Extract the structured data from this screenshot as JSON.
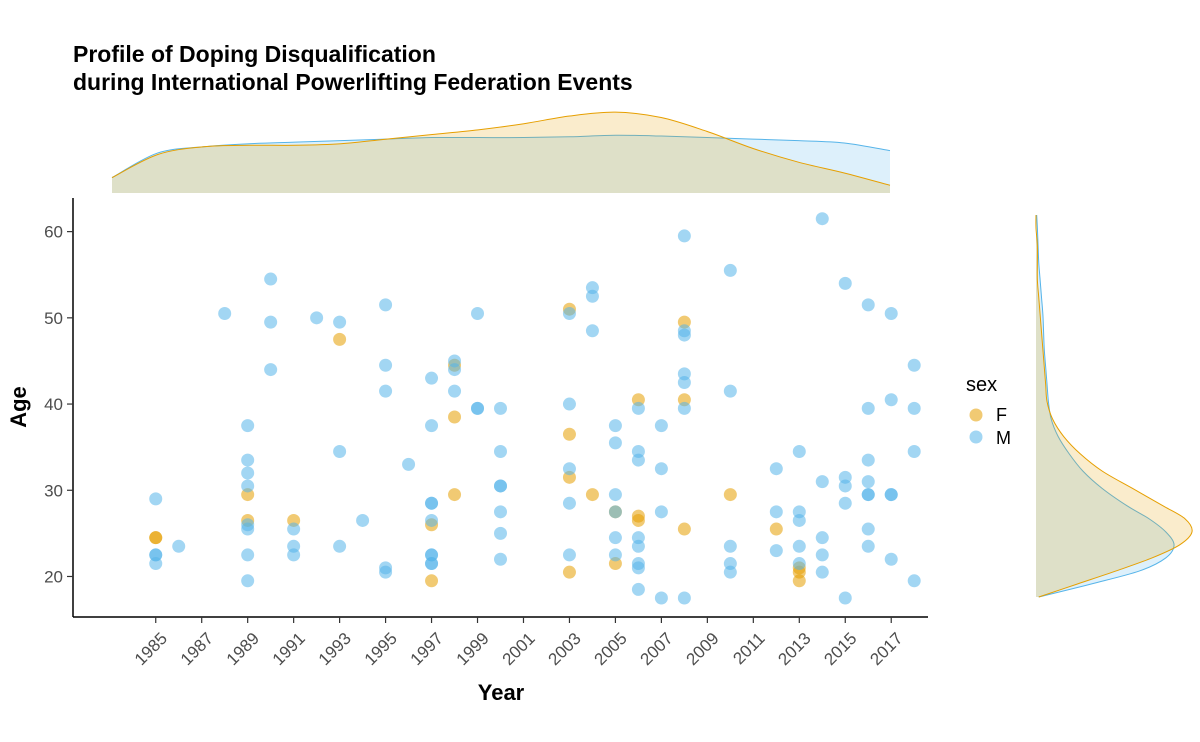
{
  "chart_data": {
    "type": "scatter",
    "title_lines": [
      "Profile of Doping Disqualification",
      "during International Powerlifting Federation Events"
    ],
    "xlabel": "Year",
    "ylabel": "Age",
    "xlim": [
      1981.4,
      2018.6
    ],
    "ylim": [
      15.3,
      63.9
    ],
    "x_ticks": [
      "1985",
      "1987",
      "1989",
      "1991",
      "1993",
      "1995",
      "1997",
      "1999",
      "2001",
      "2003",
      "2005",
      "2007",
      "2009",
      "2011",
      "2013",
      "2015",
      "2017"
    ],
    "y_ticks": [
      "20",
      "30",
      "40",
      "50",
      "60"
    ],
    "legend": {
      "title": "sex",
      "entries": [
        "F",
        "M"
      ]
    },
    "colors": {
      "F": "#E69F00",
      "M": "#56B4E9"
    },
    "series": [
      {
        "name": "F",
        "points": [
          [
            1985,
            24.5
          ],
          [
            1985,
            24.5
          ],
          [
            1989,
            29.5
          ],
          [
            1989,
            26.5
          ],
          [
            1991,
            26.5
          ],
          [
            1993,
            47.5
          ],
          [
            1997,
            26
          ],
          [
            1997,
            19.5
          ],
          [
            1998,
            44.5
          ],
          [
            1998,
            38.5
          ],
          [
            1998,
            29.5
          ],
          [
            2003,
            51
          ],
          [
            2003,
            36.5
          ],
          [
            2003,
            31.5
          ],
          [
            2003,
            20.5
          ],
          [
            2004,
            29.5
          ],
          [
            2005,
            27.5
          ],
          [
            2005,
            21.5
          ],
          [
            2006,
            40.5
          ],
          [
            2006,
            27
          ],
          [
            2006,
            26.5
          ],
          [
            2008,
            49.5
          ],
          [
            2008,
            40.5
          ],
          [
            2008,
            25.5
          ],
          [
            2010,
            29.5
          ],
          [
            2012,
            25.5
          ],
          [
            2013,
            21
          ],
          [
            2013,
            20.5
          ],
          [
            2013,
            19.5
          ]
        ]
      },
      {
        "name": "M",
        "points": [
          [
            1985,
            29
          ],
          [
            1985,
            22.5
          ],
          [
            1985,
            22.5
          ],
          [
            1985,
            21.5
          ],
          [
            1986,
            23.5
          ],
          [
            1988,
            50.5
          ],
          [
            1989,
            37.5
          ],
          [
            1989,
            33.5
          ],
          [
            1989,
            32
          ],
          [
            1989,
            30.5
          ],
          [
            1989,
            26
          ],
          [
            1989,
            25.5
          ],
          [
            1989,
            22.5
          ],
          [
            1989,
            19.5
          ],
          [
            1990,
            54.5
          ],
          [
            1990,
            49.5
          ],
          [
            1990,
            44
          ],
          [
            1991,
            25.5
          ],
          [
            1991,
            23.5
          ],
          [
            1991,
            22.5
          ],
          [
            1992,
            50
          ],
          [
            1993,
            49.5
          ],
          [
            1993,
            34.5
          ],
          [
            1993,
            23.5
          ],
          [
            1994,
            26.5
          ],
          [
            1995,
            51.5
          ],
          [
            1995,
            44.5
          ],
          [
            1995,
            41.5
          ],
          [
            1995,
            21
          ],
          [
            1995,
            20.5
          ],
          [
            1996,
            33
          ],
          [
            1997,
            43
          ],
          [
            1997,
            37.5
          ],
          [
            1997,
            28.5
          ],
          [
            1997,
            28.5
          ],
          [
            1997,
            26.5
          ],
          [
            1997,
            22.5
          ],
          [
            1997,
            22.5
          ],
          [
            1997,
            21.5
          ],
          [
            1997,
            21.5
          ],
          [
            1998,
            45
          ],
          [
            1998,
            44
          ],
          [
            1998,
            41.5
          ],
          [
            1999,
            50.5
          ],
          [
            1999,
            39.5
          ],
          [
            1999,
            39.5
          ],
          [
            2000,
            39.5
          ],
          [
            2000,
            34.5
          ],
          [
            2000,
            30.5
          ],
          [
            2000,
            30.5
          ],
          [
            2000,
            27.5
          ],
          [
            2000,
            25
          ],
          [
            2000,
            22
          ],
          [
            2003,
            50.5
          ],
          [
            2003,
            40
          ],
          [
            2003,
            32.5
          ],
          [
            2003,
            28.5
          ],
          [
            2003,
            22.5
          ],
          [
            2004,
            53.5
          ],
          [
            2004,
            52.5
          ],
          [
            2004,
            48.5
          ],
          [
            2005,
            37.5
          ],
          [
            2005,
            35.5
          ],
          [
            2005,
            29.5
          ],
          [
            2005,
            27.5
          ],
          [
            2005,
            24.5
          ],
          [
            2005,
            22.5
          ],
          [
            2006,
            39.5
          ],
          [
            2006,
            34.5
          ],
          [
            2006,
            33.5
          ],
          [
            2006,
            24.5
          ],
          [
            2006,
            23.5
          ],
          [
            2006,
            21.5
          ],
          [
            2006,
            21
          ],
          [
            2006,
            18.5
          ],
          [
            2007,
            37.5
          ],
          [
            2007,
            32.5
          ],
          [
            2007,
            27.5
          ],
          [
            2007,
            17.5
          ],
          [
            2008,
            59.5
          ],
          [
            2008,
            48.5
          ],
          [
            2008,
            48
          ],
          [
            2008,
            43.5
          ],
          [
            2008,
            42.5
          ],
          [
            2008,
            39.5
          ],
          [
            2008,
            17.5
          ],
          [
            2010,
            55.5
          ],
          [
            2010,
            41.5
          ],
          [
            2010,
            23.5
          ],
          [
            2010,
            21.5
          ],
          [
            2010,
            20.5
          ],
          [
            2012,
            32.5
          ],
          [
            2012,
            27.5
          ],
          [
            2012,
            23
          ],
          [
            2013,
            34.5
          ],
          [
            2013,
            27.5
          ],
          [
            2013,
            26.5
          ],
          [
            2013,
            23.5
          ],
          [
            2013,
            21.5
          ],
          [
            2014,
            61.5
          ],
          [
            2014,
            31
          ],
          [
            2014,
            24.5
          ],
          [
            2014,
            22.5
          ],
          [
            2014,
            20.5
          ],
          [
            2015,
            54
          ],
          [
            2015,
            31.5
          ],
          [
            2015,
            30.5
          ],
          [
            2015,
            28.5
          ],
          [
            2015,
            17.5
          ],
          [
            2016,
            51.5
          ],
          [
            2016,
            39.5
          ],
          [
            2016,
            33.5
          ],
          [
            2016,
            31
          ],
          [
            2016,
            29.5
          ],
          [
            2016,
            29.5
          ],
          [
            2016,
            25.5
          ],
          [
            2016,
            23.5
          ],
          [
            2017,
            50.5
          ],
          [
            2017,
            40.5
          ],
          [
            2017,
            29.5
          ],
          [
            2017,
            29.5
          ],
          [
            2017,
            22
          ],
          [
            2018,
            44.5
          ],
          [
            2018,
            39.5
          ],
          [
            2018,
            34.5
          ],
          [
            2018,
            19.5
          ]
        ]
      }
    ],
    "marginal_density": {
      "x_grid": [
        1984,
        1986,
        1988,
        1990,
        1992,
        1994,
        1996,
        1998,
        2000,
        2002,
        2004,
        2006,
        2008,
        2010,
        2012,
        2014,
        2016,
        2018
      ],
      "F_x": [
        0.2,
        0.5,
        0.6,
        0.62,
        0.62,
        0.64,
        0.7,
        0.76,
        0.82,
        0.9,
        1.0,
        1.05,
        0.98,
        0.8,
        0.58,
        0.4,
        0.26,
        0.1
      ],
      "M_x": [
        0.2,
        0.52,
        0.6,
        0.64,
        0.66,
        0.68,
        0.7,
        0.72,
        0.72,
        0.72,
        0.73,
        0.75,
        0.74,
        0.72,
        0.7,
        0.68,
        0.65,
        0.55
      ],
      "y_grid": [
        17.5,
        19,
        20.5,
        22,
        23.5,
        25,
        26.5,
        28,
        30,
        32,
        34,
        36,
        38,
        40,
        42,
        44,
        46,
        48,
        50,
        52,
        54,
        56,
        58,
        60,
        61.5
      ],
      "F_y": [
        0.02,
        0.3,
        0.58,
        0.84,
        1.04,
        1.13,
        1.08,
        0.92,
        0.7,
        0.48,
        0.32,
        0.2,
        0.12,
        0.08,
        0.07,
        0.06,
        0.05,
        0.04,
        0.03,
        0.02,
        0.01,
        0.01,
        0.01,
        0.0,
        0.0
      ],
      "M_y": [
        0.02,
        0.4,
        0.75,
        0.94,
        1.0,
        0.94,
        0.82,
        0.66,
        0.48,
        0.34,
        0.24,
        0.16,
        0.11,
        0.09,
        0.08,
        0.07,
        0.06,
        0.055,
        0.05,
        0.04,
        0.03,
        0.02,
        0.015,
        0.01,
        0.005
      ]
    }
  }
}
